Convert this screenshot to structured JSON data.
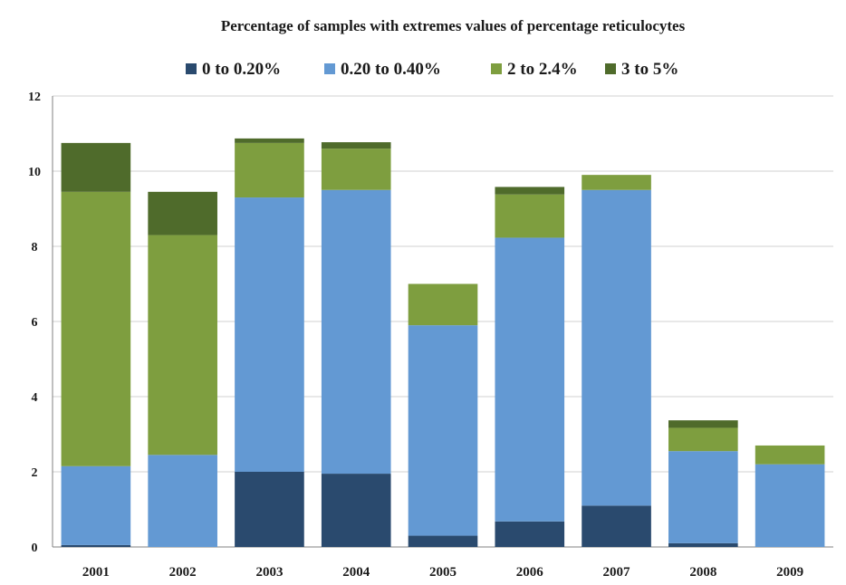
{
  "chart_data": {
    "type": "bar",
    "stacked": true,
    "title": "Percentage of samples with extremes values of percentage reticulocytes",
    "xlabel": "",
    "ylabel": "",
    "ylim": [
      0,
      12
    ],
    "yticks": [
      0,
      2,
      4,
      6,
      8,
      10,
      12
    ],
    "grid": true,
    "legend_position": "top",
    "categories": [
      "2001",
      "2002",
      "2003",
      "2004",
      "2005",
      "2006",
      "2007",
      "2008",
      "2009"
    ],
    "series": [
      {
        "name": "0 to 0.20%",
        "color": "#2a4a6e",
        "values": [
          0.05,
          0.0,
          2.0,
          1.95,
          0.3,
          0.68,
          1.1,
          0.1,
          0.0
        ]
      },
      {
        "name": "0.20 to 0.40%",
        "color": "#6399d3",
        "values": [
          2.1,
          2.45,
          7.3,
          7.55,
          5.6,
          7.55,
          8.4,
          2.45,
          2.2
        ]
      },
      {
        "name": "2 to 2.4%",
        "color": "#7e9e3f",
        "values": [
          7.3,
          5.85,
          1.45,
          1.1,
          1.1,
          1.15,
          0.4,
          0.62,
          0.5
        ]
      },
      {
        "name": "3 to 5%",
        "color": "#4f6b2b",
        "values": [
          1.3,
          1.15,
          0.12,
          0.17,
          0.0,
          0.2,
          0.0,
          0.2,
          0.0
        ]
      }
    ]
  }
}
